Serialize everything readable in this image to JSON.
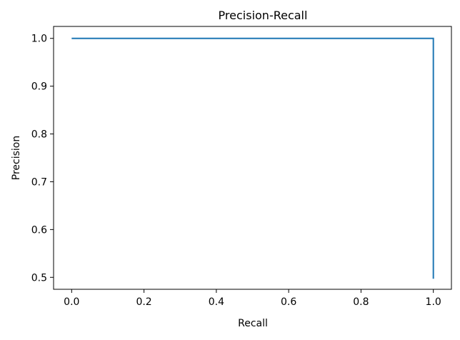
{
  "chart_data": {
    "type": "line",
    "title": "Precision-Recall",
    "xlabel": "Recall",
    "ylabel": "Precision",
    "xlim": [
      -0.05,
      1.05
    ],
    "ylim": [
      0.475,
      1.025
    ],
    "xticks": [
      0.0,
      0.2,
      0.4,
      0.6,
      0.8,
      1.0
    ],
    "xtick_labels": [
      "0.0",
      "0.2",
      "0.4",
      "0.6",
      "0.8",
      "1.0"
    ],
    "yticks": [
      0.5,
      0.6,
      0.7,
      0.8,
      0.9,
      1.0
    ],
    "ytick_labels": [
      "0.5",
      "0.6",
      "0.7",
      "0.8",
      "0.9",
      "1.0"
    ],
    "grid": false,
    "series": [
      {
        "color": "#1f77b4",
        "x": [
          0.0,
          1.0,
          1.0
        ],
        "y": [
          1.0,
          1.0,
          0.497
        ]
      }
    ]
  }
}
